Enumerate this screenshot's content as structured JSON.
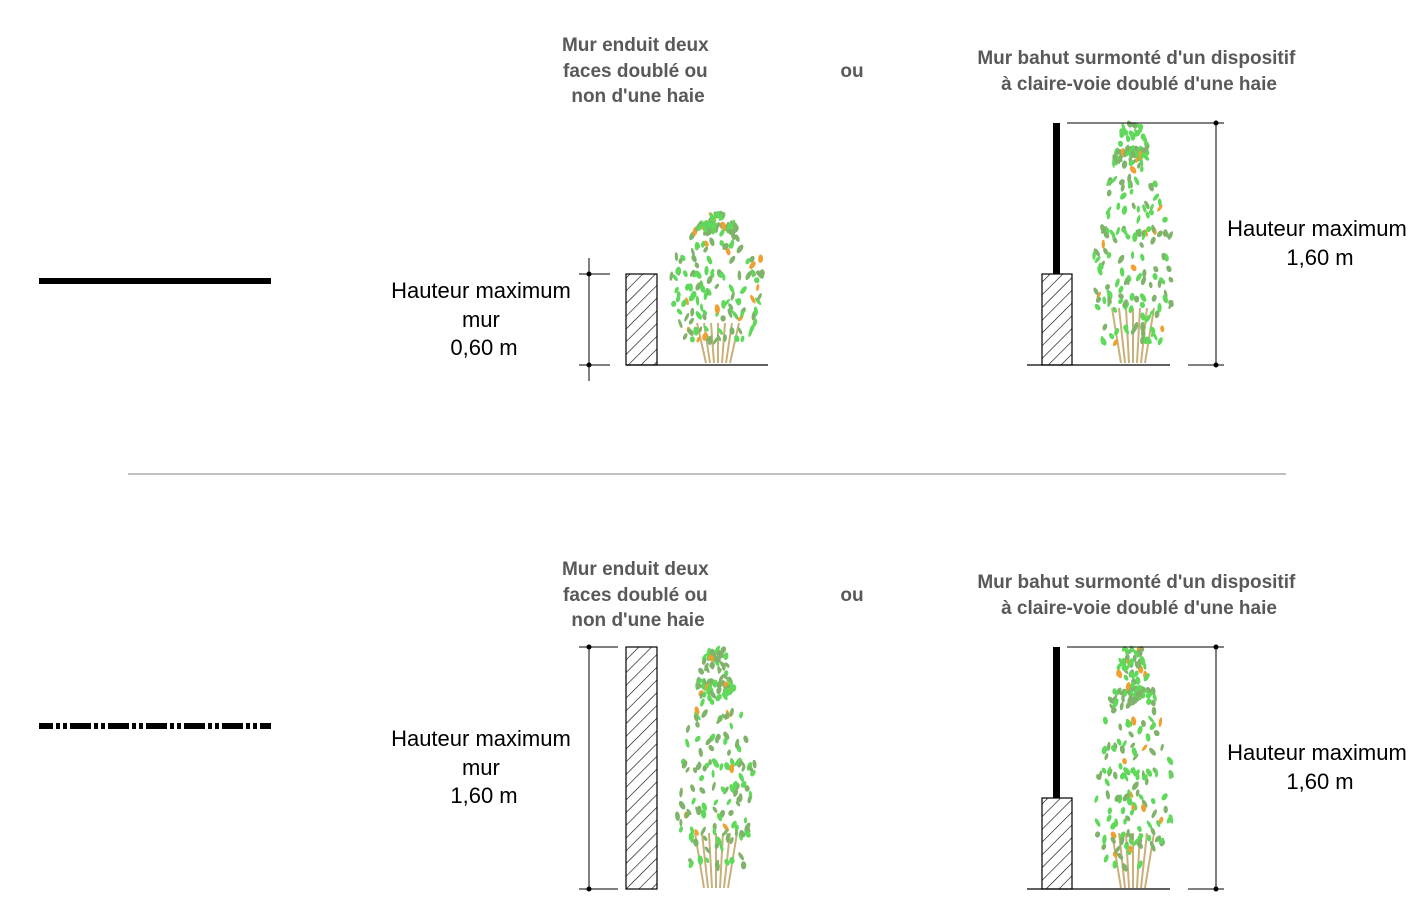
{
  "colors": {
    "title_text": "#595959",
    "dimension_text": "#000000",
    "leaf_green_light": "#5fd95a",
    "leaf_green_dark": "#7fb36a",
    "leaf_orange": "#f0a030",
    "trunk": "#c9b07a",
    "separator": "#808080"
  },
  "rows": [
    {
      "legend_line": "solid",
      "wall_title": [
        "Mur enduit deux",
        "faces doublé ou",
        "non d'une haie"
      ],
      "or_label": "ou",
      "fence_title": [
        "Mur bahut surmonté d'un dispositif",
        "à claire-voie doublé d'une haie"
      ],
      "wall_height": [
        "Hauteur maximum",
        "mur",
        "0,60 m"
      ],
      "fence_height": [
        "Hauteur maximum",
        "1,60 m"
      ]
    },
    {
      "legend_line": "dash-dot",
      "wall_title": [
        "Mur enduit deux",
        "faces doublé ou",
        "non d'une haie"
      ],
      "or_label": "ou",
      "fence_title": [
        "Mur bahut surmonté d'un dispositif",
        "à claire-voie doublé d'une haie"
      ],
      "wall_height": [
        "Hauteur maximum",
        "mur",
        "1,60 m"
      ],
      "fence_height": [
        "Hauteur maximum",
        "1,60 m"
      ]
    }
  ]
}
